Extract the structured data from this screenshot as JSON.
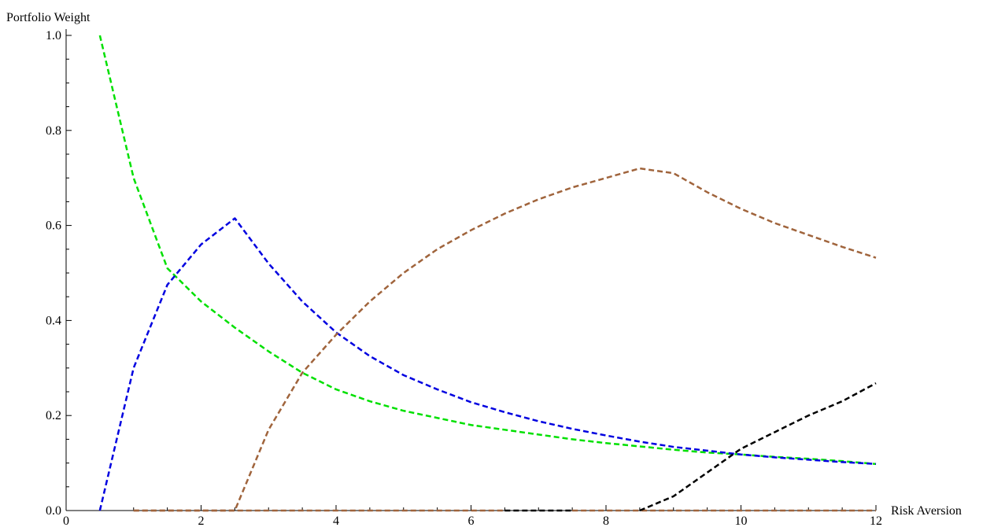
{
  "chart_data": {
    "type": "line",
    "title": "",
    "xlabel": "Risk Aversion",
    "ylabel": "Portfolio Weight",
    "xlim": [
      0,
      12
    ],
    "ylim": [
      0,
      1.0
    ],
    "x_ticks": [
      0,
      2,
      4,
      6,
      8,
      10,
      12
    ],
    "x_tick_labels": [
      "0",
      "2",
      "4",
      "6",
      "8",
      "10",
      "12"
    ],
    "y_ticks": [
      0.0,
      0.2,
      0.4,
      0.6,
      0.8,
      1.0
    ],
    "y_tick_labels": [
      "0.0",
      "0.2",
      "0.4",
      "0.6",
      "0.8",
      "1.0"
    ],
    "grid": false,
    "legend": "none",
    "series": [
      {
        "color": "#00e000",
        "x": [
          0.5,
          1,
          1.5,
          2,
          2.5,
          3,
          3.5,
          4,
          4.5,
          5,
          5.5,
          6,
          6.5,
          7,
          7.5,
          8,
          8.5,
          9,
          9.5,
          10,
          10.5,
          11,
          11.5,
          12
        ],
        "y": [
          1.0,
          0.7,
          0.51,
          0.44,
          0.385,
          0.335,
          0.29,
          0.255,
          0.23,
          0.21,
          0.195,
          0.18,
          0.17,
          0.16,
          0.15,
          0.142,
          0.135,
          0.128,
          0.122,
          0.118,
          0.113,
          0.109,
          0.104,
          0.098
        ]
      },
      {
        "color": "#0000e0",
        "x": [
          0.5,
          1,
          1.5,
          2,
          2.5,
          3,
          3.5,
          4,
          4.5,
          5,
          5.5,
          6,
          6.5,
          7,
          7.5,
          8,
          8.5,
          9,
          9.5,
          10,
          10.5,
          11,
          11.5,
          12
        ],
        "y": [
          0.0,
          0.3,
          0.475,
          0.56,
          0.615,
          0.52,
          0.44,
          0.375,
          0.325,
          0.285,
          0.255,
          0.228,
          0.207,
          0.188,
          0.172,
          0.158,
          0.145,
          0.134,
          0.126,
          0.118,
          0.112,
          0.107,
          0.102,
          0.098
        ]
      },
      {
        "color": "#a0643c",
        "x": [
          1,
          1.5,
          2,
          2.5,
          3,
          3.5,
          4,
          4.5,
          5,
          5.5,
          6,
          6.5,
          7,
          7.5,
          8,
          8.5,
          9,
          9.5,
          10,
          10.5,
          11,
          11.5,
          12
        ],
        "y": [
          0.0,
          0.0,
          0.0,
          0.0,
          0.17,
          0.29,
          0.37,
          0.44,
          0.5,
          0.55,
          0.59,
          0.625,
          0.655,
          0.68,
          0.7,
          0.72,
          0.71,
          0.67,
          0.635,
          0.605,
          0.58,
          0.555,
          0.532
        ]
      },
      {
        "color": "#a0643c",
        "x": [
          1,
          2,
          3,
          4,
          5,
          6,
          6.5
        ],
        "y": [
          0.0,
          0.0,
          0.0,
          0.0,
          0.0,
          0.0,
          0.0
        ]
      },
      {
        "color": "#000000",
        "x": [
          6.5,
          7,
          7.5
        ],
        "y": [
          0.0,
          0.0,
          0.0
        ]
      },
      {
        "color": "#a0643c",
        "x": [
          7.5,
          8,
          8.5,
          9,
          10,
          11,
          12
        ],
        "y": [
          0.0,
          0.0,
          0.0,
          0.0,
          0.0,
          0.0,
          0.0
        ]
      },
      {
        "color": "#000000",
        "x": [
          8.5,
          9,
          9.5,
          10,
          10.5,
          11,
          11.5,
          12
        ],
        "y": [
          0.0,
          0.03,
          0.08,
          0.13,
          0.165,
          0.2,
          0.23,
          0.268
        ]
      }
    ]
  }
}
